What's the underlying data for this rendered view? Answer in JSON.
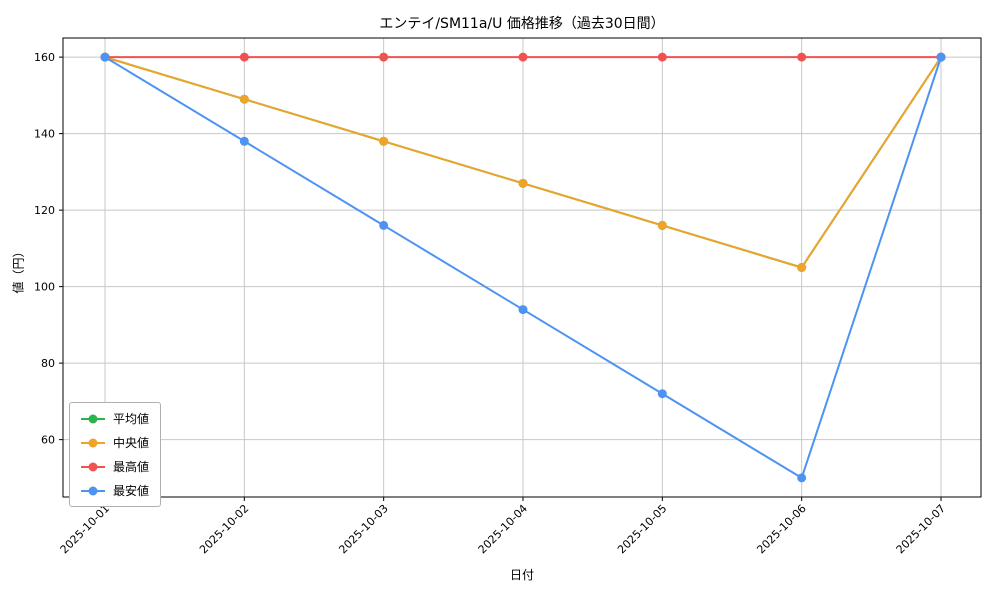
{
  "chart_data": {
    "type": "line",
    "title": "エンテイ/SM11a/U 価格推移（過去30日間）",
    "xlabel": "日付",
    "ylabel": "値（円）",
    "categories": [
      "2025-10-01",
      "2025-10-02",
      "2025-10-03",
      "2025-10-04",
      "2025-10-05",
      "2025-10-06",
      "2025-10-07"
    ],
    "yticks": [
      60,
      80,
      100,
      120,
      140,
      160
    ],
    "ylim": [
      45,
      165
    ],
    "grid": true,
    "legend_position": "lower left",
    "series": [
      {
        "name": "平均値",
        "color": "#2db34c",
        "values": [
          160,
          149,
          138,
          127,
          116,
          105,
          160
        ]
      },
      {
        "name": "中央値",
        "color": "#efa32b",
        "values": [
          160,
          149,
          138,
          127,
          116,
          105,
          160
        ]
      },
      {
        "name": "最高値",
        "color": "#ef5350",
        "values": [
          160,
          160,
          160,
          160,
          160,
          160,
          160
        ]
      },
      {
        "name": "最安値",
        "color": "#4d94f2",
        "values": [
          160,
          138,
          116,
          94,
          72,
          50,
          160
        ]
      }
    ],
    "colors": {
      "grid": "#c8c8c8",
      "axis": "#000000",
      "background": "#ffffff"
    }
  }
}
